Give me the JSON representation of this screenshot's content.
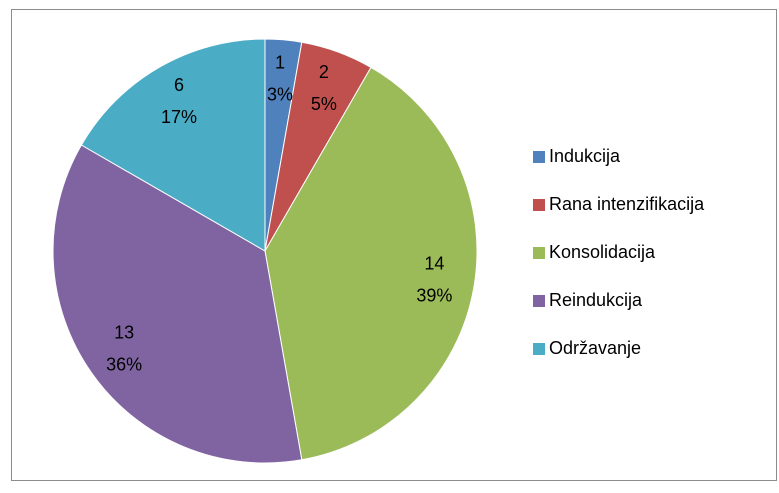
{
  "chart_data": {
    "type": "pie",
    "categories": [
      "Indukcija",
      "Rana intenzifikacija",
      "Konsolidacija",
      "Reindukcija",
      "Održavanje"
    ],
    "values": [
      1,
      2,
      14,
      13,
      6
    ],
    "percent_labels": [
      "3%",
      "5%",
      "39%",
      "36%",
      "17%"
    ],
    "colors": [
      "#4f81bd",
      "#c0504d",
      "#9bbb59",
      "#8064a2",
      "#4bacc6"
    ],
    "legend": "right"
  }
}
